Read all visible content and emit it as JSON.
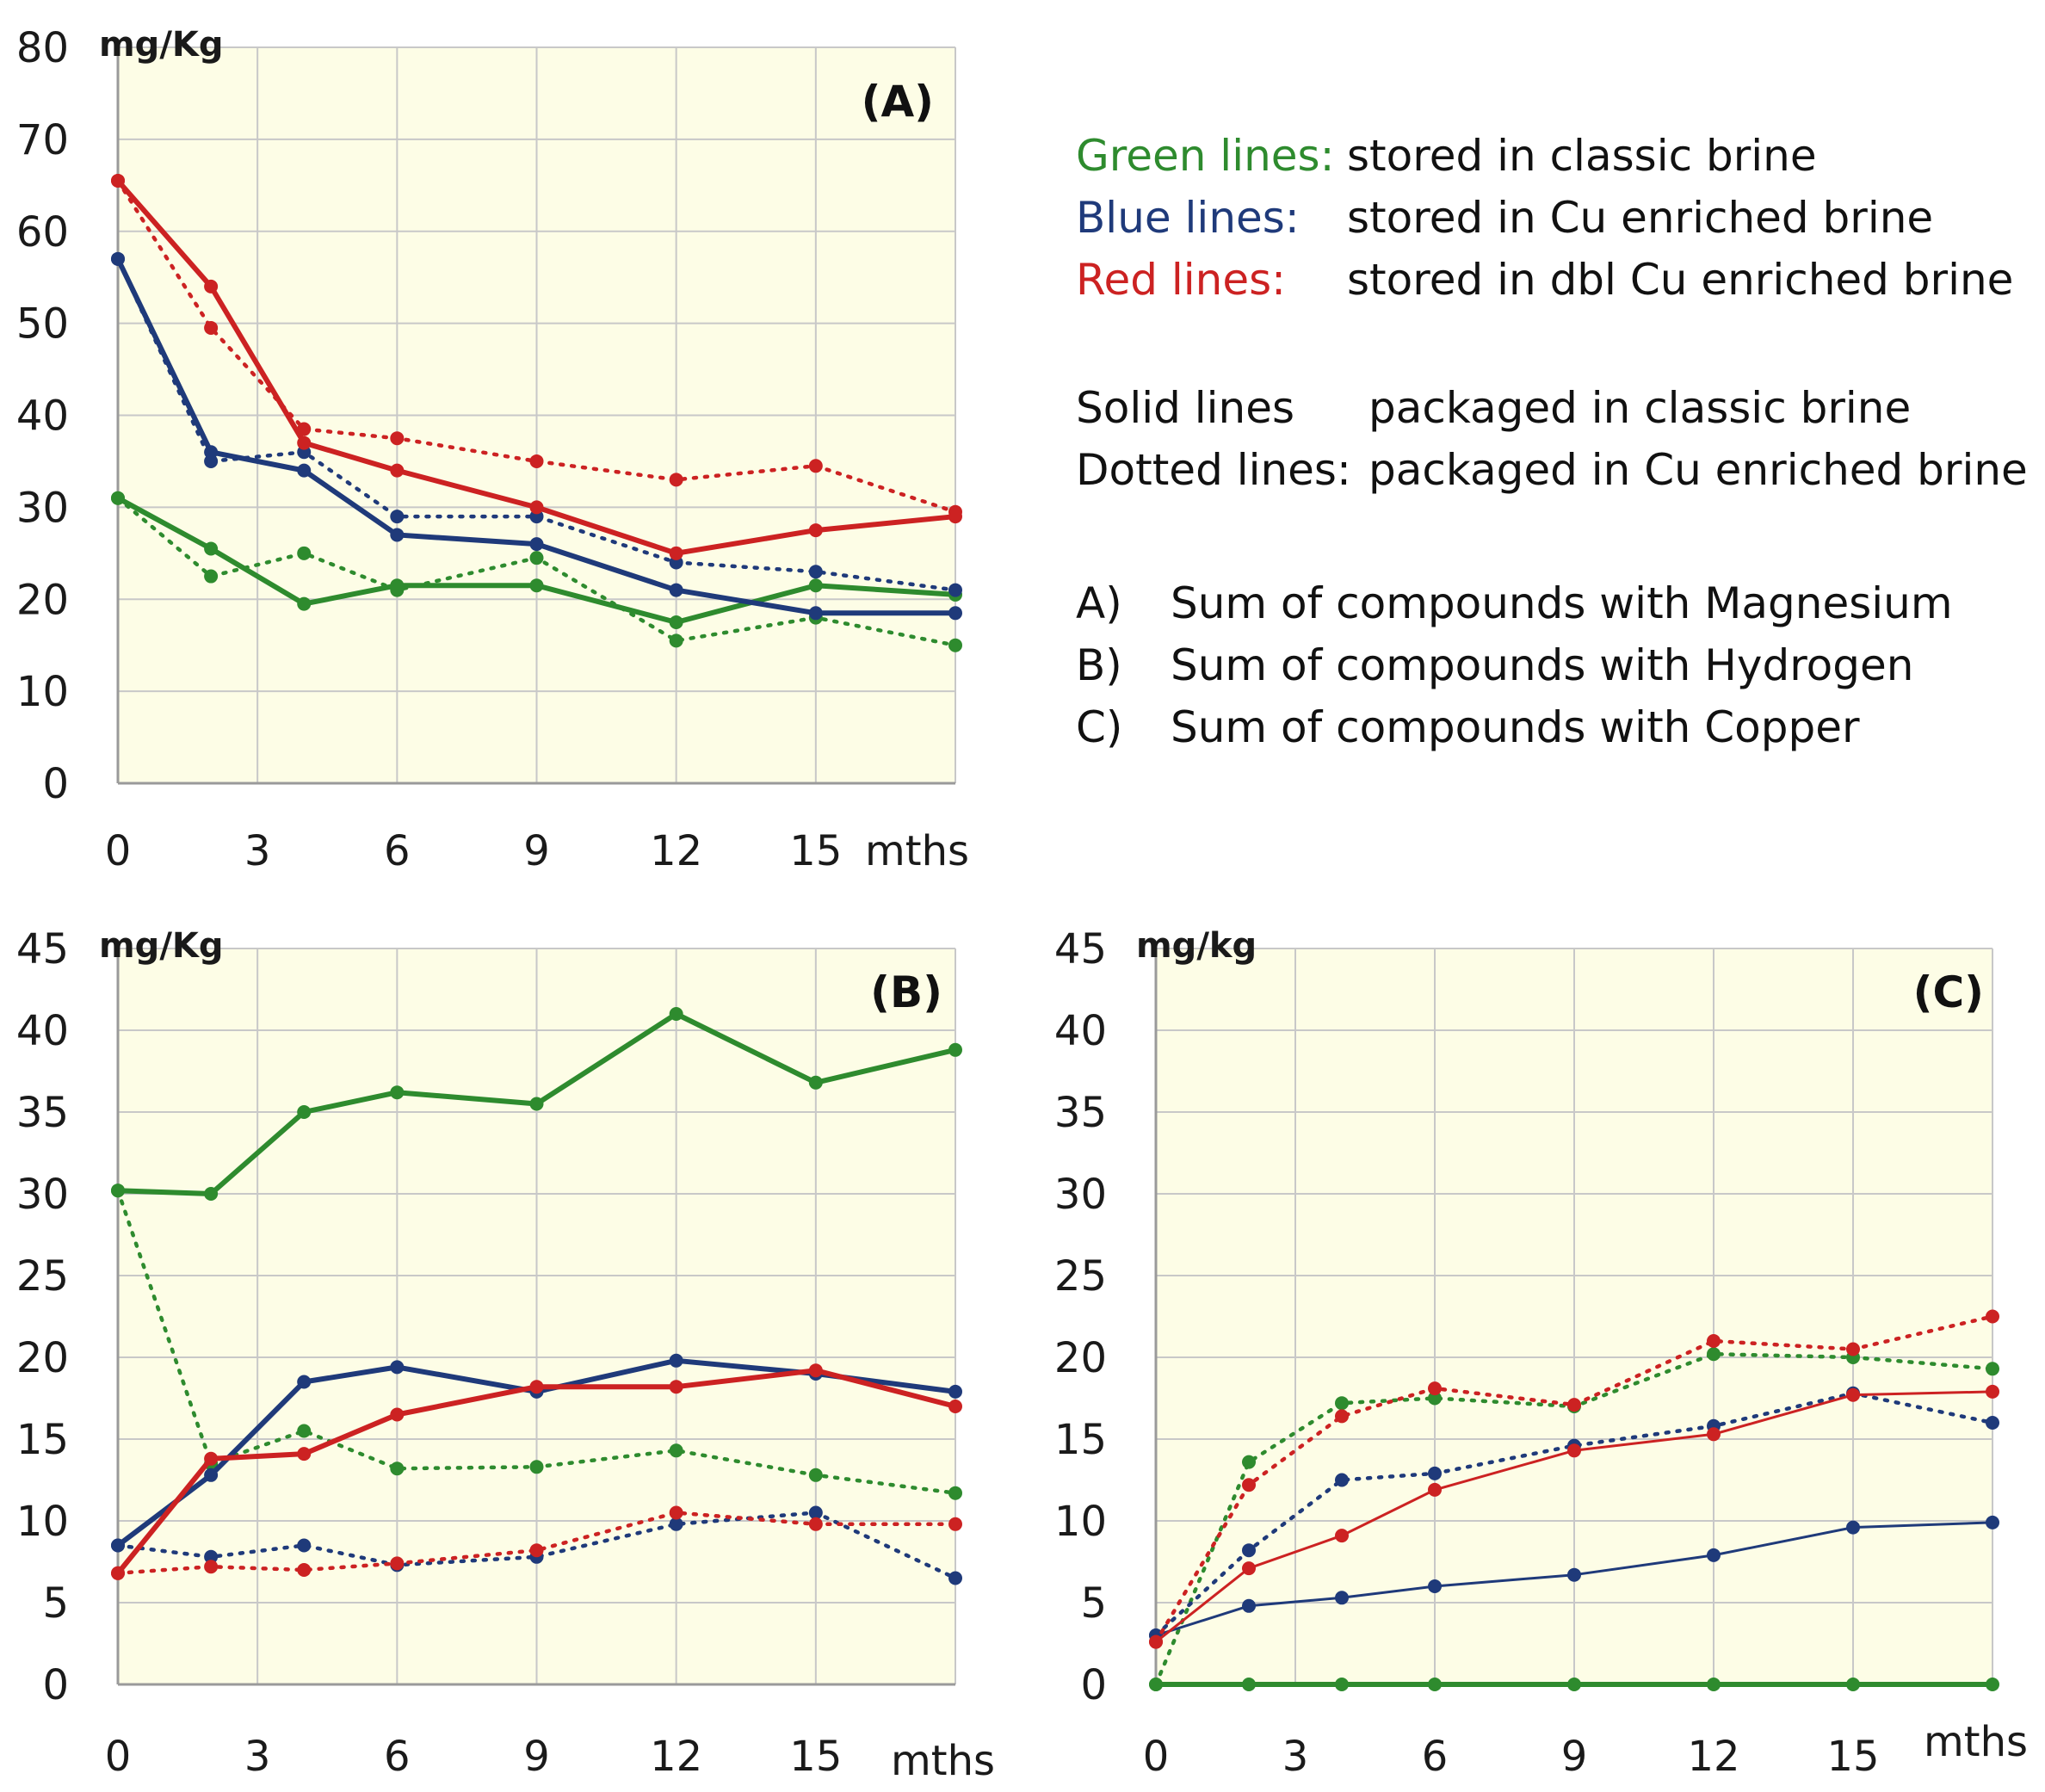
{
  "legend": {
    "color_rows": [
      {
        "key": "Green lines:",
        "text": "stored in classic brine",
        "color": "#2e8b2e"
      },
      {
        "key": "Blue lines:",
        "text": "stored in Cu enriched brine",
        "color": "#1f3a7a"
      },
      {
        "key": "Red lines:",
        "text": "stored in dbl Cu enriched brine",
        "color": "#cc2222"
      }
    ],
    "style_rows": [
      {
        "key": "Solid lines",
        "text": "packaged in classic brine"
      },
      {
        "key": "Dotted lines:",
        "text": "packaged in Cu enriched brine"
      }
    ],
    "panel_rows": [
      {
        "key": "A)",
        "text": "Sum of compounds with Magnesium"
      },
      {
        "key": "B)",
        "text": "Sum of compounds with Hydrogen"
      },
      {
        "key": "C)",
        "text": "Sum of compounds with Copper"
      }
    ]
  },
  "colors": {
    "green": "#2e8b2e",
    "blue": "#1f3a7a",
    "red": "#cc2222",
    "plot_bg": "#fdfde6",
    "grid": "#c8c8c8"
  },
  "chart_data": [
    {
      "id": "A",
      "type": "line",
      "label": "(A)",
      "ylabel": "mg/Kg",
      "xlabel": "mths",
      "x": [
        0,
        2,
        4,
        6,
        9,
        12,
        15,
        18
      ],
      "xticks": [
        "0",
        "3",
        "6",
        "9",
        "12",
        "15"
      ],
      "xtick_values": [
        0,
        3,
        6,
        9,
        12,
        15
      ],
      "ylim": [
        0,
        80
      ],
      "yticks": [
        0,
        10,
        20,
        30,
        40,
        50,
        60,
        70,
        80
      ],
      "series": [
        {
          "name": "green solid",
          "color": "green",
          "style": "solid",
          "values": [
            31,
            25.5,
            19.5,
            21.5,
            21.5,
            17.5,
            21.5,
            20.5
          ]
        },
        {
          "name": "green dotted",
          "color": "green",
          "style": "dotted",
          "values": [
            31,
            22.5,
            25,
            21,
            24.5,
            15.5,
            18,
            15
          ]
        },
        {
          "name": "blue solid",
          "color": "blue",
          "style": "solid",
          "values": [
            57,
            36,
            34,
            27,
            26,
            21,
            18.5,
            18.5
          ]
        },
        {
          "name": "blue dotted",
          "color": "blue",
          "style": "dotted",
          "values": [
            57,
            35,
            36,
            29,
            29,
            24,
            23,
            21
          ]
        },
        {
          "name": "red solid",
          "color": "red",
          "style": "solid",
          "values": [
            65.5,
            54,
            37,
            34,
            30,
            25,
            27.5,
            29
          ]
        },
        {
          "name": "red dotted",
          "color": "red",
          "style": "dotted",
          "values": [
            65.5,
            49.5,
            38.5,
            37.5,
            35,
            33,
            34.5,
            29.5
          ]
        }
      ]
    },
    {
      "id": "B",
      "type": "line",
      "label": "(B)",
      "ylabel": "mg/Kg",
      "xlabel": "mths",
      "x": [
        0,
        2,
        4,
        6,
        9,
        12,
        15,
        18
      ],
      "xticks": [
        "0",
        "3",
        "6",
        "9",
        "12",
        "15"
      ],
      "xtick_values": [
        0,
        3,
        6,
        9,
        12,
        15
      ],
      "ylim": [
        0,
        45
      ],
      "yticks": [
        0,
        5,
        10,
        15,
        20,
        25,
        30,
        35,
        40,
        45
      ],
      "series": [
        {
          "name": "green solid",
          "color": "green",
          "style": "solid",
          "values": [
            30.2,
            30,
            35,
            36.2,
            35.5,
            41,
            36.8,
            38.8
          ]
        },
        {
          "name": "green dotted",
          "color": "green",
          "style": "dotted",
          "values": [
            30.2,
            13.5,
            15.5,
            13.2,
            13.3,
            14.3,
            12.8,
            11.7
          ]
        },
        {
          "name": "blue solid",
          "color": "blue",
          "style": "solid",
          "values": [
            8.5,
            12.8,
            18.5,
            19.4,
            17.9,
            19.8,
            19,
            17.9
          ]
        },
        {
          "name": "blue dotted",
          "color": "blue",
          "style": "dotted",
          "values": [
            8.5,
            7.8,
            8.5,
            7.3,
            7.8,
            9.8,
            10.5,
            6.5
          ]
        },
        {
          "name": "red solid",
          "color": "red",
          "style": "solid",
          "values": [
            6.8,
            13.8,
            14.1,
            16.5,
            18.2,
            18.2,
            19.2,
            17
          ]
        },
        {
          "name": "red dotted",
          "color": "red",
          "style": "dotted",
          "values": [
            6.8,
            7.2,
            7,
            7.4,
            8.2,
            10.5,
            9.8,
            9.8
          ]
        }
      ]
    },
    {
      "id": "C",
      "type": "line",
      "label": "(C)",
      "ylabel": "mg/kg",
      "xlabel": "mths",
      "x": [
        0,
        2,
        4,
        6,
        9,
        12,
        15,
        18
      ],
      "xticks": [
        "0",
        "3",
        "6",
        "9",
        "12",
        "15"
      ],
      "xtick_values": [
        0,
        3,
        6,
        9,
        12,
        15
      ],
      "ylim": [
        0,
        45
      ],
      "yticks": [
        0,
        5,
        10,
        15,
        20,
        25,
        30,
        35,
        40,
        45
      ],
      "series": [
        {
          "name": "green solid",
          "color": "green",
          "style": "solid",
          "values": [
            0,
            0,
            0,
            0,
            0,
            0,
            0,
            0
          ]
        },
        {
          "name": "green dotted",
          "color": "green",
          "style": "dotted",
          "values": [
            0,
            13.6,
            17.2,
            17.5,
            17,
            20.2,
            20,
            19.3
          ]
        },
        {
          "name": "blue solid",
          "color": "blue",
          "style": "solid",
          "values": [
            3,
            4.8,
            5.3,
            6,
            6.7,
            7.9,
            9.6,
            9.9
          ]
        },
        {
          "name": "blue dotted",
          "color": "blue",
          "style": "dotted",
          "values": [
            3,
            8.2,
            12.5,
            12.9,
            14.6,
            15.8,
            17.8,
            16
          ]
        },
        {
          "name": "red solid",
          "color": "red",
          "style": "solid",
          "values": [
            2.6,
            7.1,
            9.1,
            11.9,
            14.3,
            15.3,
            17.7,
            17.9
          ]
        },
        {
          "name": "red dotted",
          "color": "red",
          "style": "dotted",
          "values": [
            2.6,
            12.2,
            16.4,
            18.1,
            17.1,
            21,
            20.5,
            22.5
          ]
        }
      ]
    }
  ]
}
